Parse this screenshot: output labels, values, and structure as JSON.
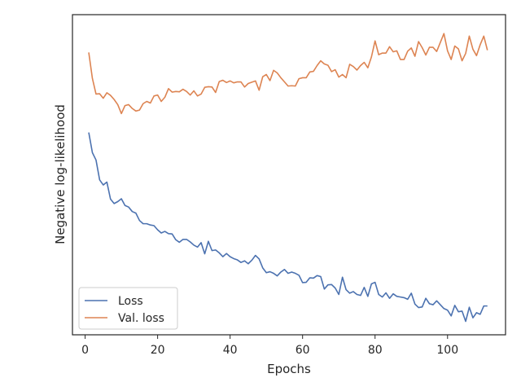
{
  "chart_data": {
    "type": "line",
    "title": "",
    "xlabel": "Epochs",
    "ylabel": "Negative log-likelihood",
    "xlim": [
      -3.5,
      116
    ],
    "ylim": [
      0.0,
      1.0
    ],
    "xticks": [
      0,
      20,
      40,
      60,
      80,
      100
    ],
    "yticks_shown": false,
    "grid": false,
    "legend": {
      "placement": "lower-left"
    },
    "series": [
      {
        "name": "Loss",
        "color": "#4c72b0",
        "x": [
          1,
          2,
          3,
          4,
          5,
          6,
          7,
          8,
          9,
          10,
          11,
          12,
          13,
          14,
          15,
          16,
          17,
          18,
          19,
          20,
          21,
          22,
          23,
          24,
          25,
          26,
          27,
          28,
          29,
          30,
          31,
          32,
          33,
          34,
          35,
          36,
          37,
          38,
          39,
          40,
          41,
          42,
          43,
          44,
          45,
          46,
          47,
          48,
          49,
          50,
          51,
          52,
          53,
          54,
          55,
          56,
          57,
          58,
          59,
          60,
          61,
          62,
          63,
          64,
          65,
          66,
          67,
          68,
          69,
          70,
          71,
          72,
          73,
          74,
          75,
          76,
          77,
          78,
          79,
          80,
          81,
          82,
          83,
          84,
          85,
          86,
          87,
          88,
          89,
          90,
          91,
          92,
          93,
          94,
          95,
          96,
          97,
          98,
          99,
          100,
          101,
          102,
          103,
          104,
          105,
          106,
          107,
          108,
          109,
          110,
          111
        ],
        "values": [
          0.632,
          0.569,
          0.546,
          0.484,
          0.468,
          0.477,
          0.424,
          0.41,
          0.416,
          0.425,
          0.404,
          0.399,
          0.385,
          0.38,
          0.357,
          0.347,
          0.347,
          0.343,
          0.341,
          0.328,
          0.318,
          0.323,
          0.316,
          0.315,
          0.297,
          0.289,
          0.298,
          0.298,
          0.29,
          0.28,
          0.274,
          0.288,
          0.253,
          0.292,
          0.263,
          0.265,
          0.256,
          0.244,
          0.254,
          0.244,
          0.238,
          0.234,
          0.226,
          0.231,
          0.222,
          0.233,
          0.248,
          0.237,
          0.209,
          0.194,
          0.197,
          0.192,
          0.184,
          0.196,
          0.204,
          0.192,
          0.196,
          0.192,
          0.186,
          0.163,
          0.164,
          0.178,
          0.177,
          0.185,
          0.182,
          0.143,
          0.156,
          0.157,
          0.146,
          0.126,
          0.18,
          0.141,
          0.13,
          0.135,
          0.126,
          0.123,
          0.148,
          0.12,
          0.159,
          0.164,
          0.126,
          0.118,
          0.131,
          0.114,
          0.128,
          0.12,
          0.118,
          0.116,
          0.111,
          0.13,
          0.096,
          0.085,
          0.087,
          0.114,
          0.097,
          0.094,
          0.106,
          0.094,
          0.082,
          0.077,
          0.059,
          0.092,
          0.072,
          0.074,
          0.042,
          0.086,
          0.053,
          0.069,
          0.064,
          0.09,
          0.09
        ]
      },
      {
        "name": "Val. loss",
        "color": "#dd8452",
        "x": [
          1,
          2,
          3,
          4,
          5,
          6,
          7,
          8,
          9,
          10,
          11,
          12,
          13,
          14,
          15,
          16,
          17,
          18,
          19,
          20,
          21,
          22,
          23,
          24,
          25,
          26,
          27,
          28,
          29,
          30,
          31,
          32,
          33,
          34,
          35,
          36,
          37,
          38,
          39,
          40,
          41,
          42,
          43,
          44,
          45,
          46,
          47,
          48,
          49,
          50,
          51,
          52,
          53,
          54,
          55,
          56,
          57,
          58,
          59,
          60,
          61,
          62,
          63,
          64,
          65,
          66,
          67,
          68,
          69,
          70,
          71,
          72,
          73,
          74,
          75,
          76,
          77,
          78,
          79,
          80,
          81,
          82,
          83,
          84,
          85,
          86,
          87,
          88,
          89,
          90,
          91,
          92,
          93,
          94,
          95,
          96,
          97,
          98,
          99,
          100,
          101,
          102,
          103,
          104,
          105,
          106,
          107,
          108,
          109,
          110,
          111
        ],
        "values": [
          0.882,
          0.801,
          0.752,
          0.753,
          0.739,
          0.756,
          0.748,
          0.735,
          0.719,
          0.691,
          0.716,
          0.719,
          0.707,
          0.699,
          0.702,
          0.722,
          0.729,
          0.724,
          0.746,
          0.749,
          0.729,
          0.742,
          0.769,
          0.758,
          0.76,
          0.759,
          0.767,
          0.76,
          0.749,
          0.762,
          0.746,
          0.752,
          0.773,
          0.775,
          0.774,
          0.757,
          0.791,
          0.795,
          0.788,
          0.793,
          0.787,
          0.79,
          0.79,
          0.774,
          0.785,
          0.789,
          0.793,
          0.764,
          0.806,
          0.813,
          0.794,
          0.826,
          0.818,
          0.803,
          0.79,
          0.777,
          0.778,
          0.777,
          0.8,
          0.803,
          0.803,
          0.821,
          0.823,
          0.841,
          0.856,
          0.846,
          0.842,
          0.822,
          0.828,
          0.805,
          0.813,
          0.803,
          0.845,
          0.838,
          0.827,
          0.841,
          0.851,
          0.834,
          0.868,
          0.918,
          0.875,
          0.88,
          0.88,
          0.9,
          0.884,
          0.887,
          0.86,
          0.86,
          0.886,
          0.896,
          0.87,
          0.916,
          0.897,
          0.874,
          0.898,
          0.898,
          0.885,
          0.913,
          0.941,
          0.887,
          0.86,
          0.902,
          0.893,
          0.856,
          0.879,
          0.933,
          0.892,
          0.872,
          0.906,
          0.933,
          0.889
        ]
      }
    ]
  }
}
